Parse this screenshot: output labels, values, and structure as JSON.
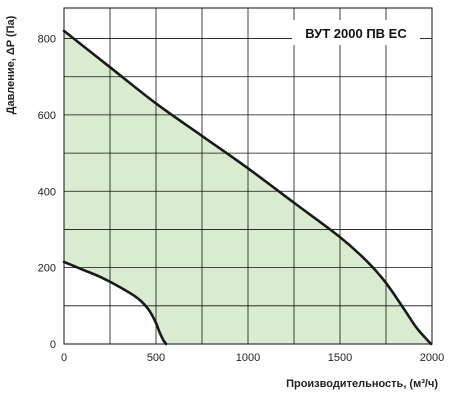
{
  "chart_data": {
    "type": "area",
    "title": "ВУТ 2000 ПВ ЕС",
    "xlabel": "Производительность, (м³/ч)",
    "ylabel": "Давление, ΔP (Па)",
    "xlim": [
      0,
      2000
    ],
    "ylim": [
      0,
      880
    ],
    "x_ticks": [
      "0",
      "500",
      "1000",
      "1500",
      "2000"
    ],
    "y_ticks": [
      "0",
      "200",
      "400",
      "600",
      "800"
    ],
    "grid": true,
    "fill_color": "#d9ecd0",
    "line_color": "#1a1a1a",
    "series": [
      {
        "role": "max",
        "x": [
          0,
          250,
          500,
          750,
          1000,
          1250,
          1500,
          1650,
          1750,
          1850,
          1920,
          1995
        ],
        "y": [
          820,
          725,
          630,
          545,
          460,
          370,
          280,
          215,
          160,
          90,
          40,
          0
        ]
      },
      {
        "role": "min",
        "x": [
          0,
          100,
          200,
          300,
          400,
          460,
          500,
          520,
          540,
          555
        ],
        "y": [
          215,
          195,
          175,
          150,
          120,
          90,
          55,
          30,
          10,
          0
        ]
      }
    ]
  }
}
